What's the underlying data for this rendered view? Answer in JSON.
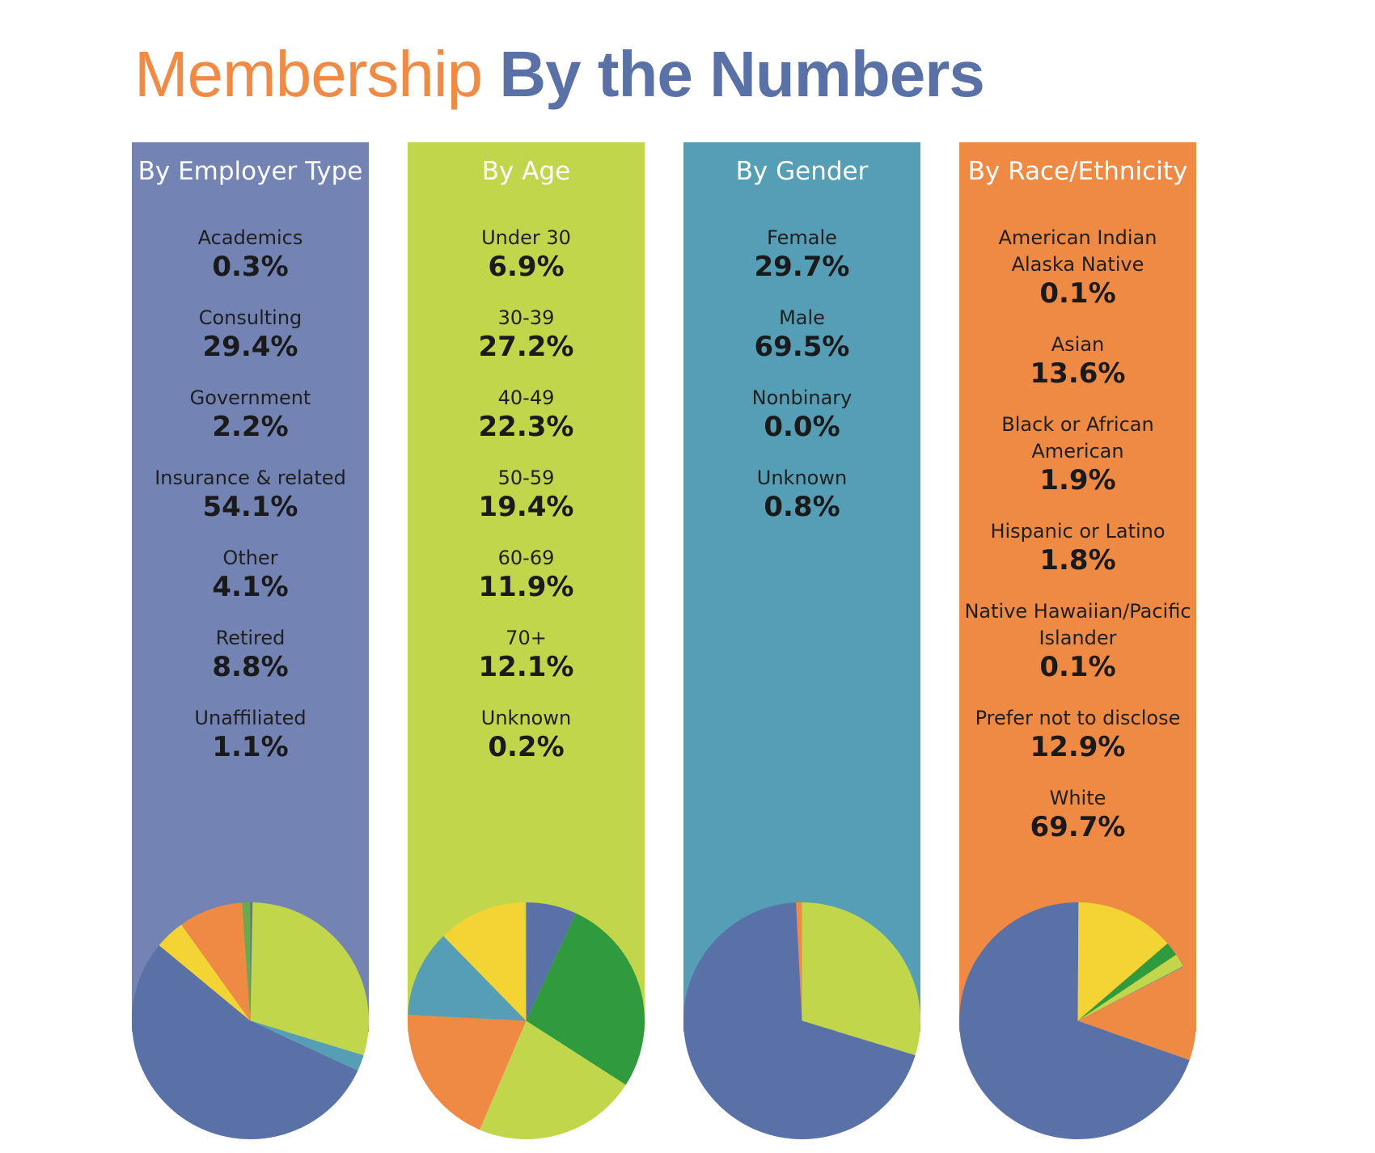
{
  "title": {
    "part1": "Membership",
    "part2": "By the Numbers"
  },
  "colors": {
    "title_orange": "#f08a44",
    "title_blue": "#5a71a8"
  },
  "columns": [
    {
      "title": "By Employer Type",
      "bg": "#7383b3",
      "entries": [
        {
          "label": "Academics",
          "value": "0.3%"
        },
        {
          "label": "Consulting",
          "value": "29.4%"
        },
        {
          "label": "Government",
          "value": "2.2%"
        },
        {
          "label": "Insurance & related",
          "value": "54.1%"
        },
        {
          "label": "Other",
          "value": "4.1%"
        },
        {
          "label": "Retired",
          "value": "8.8%"
        },
        {
          "label": "Unaffiliated",
          "value": "1.1%"
        }
      ]
    },
    {
      "title": "By Age",
      "bg": "#c2d64b",
      "entries": [
        {
          "label": "Under 30",
          "value": "6.9%"
        },
        {
          "label": "30-39",
          "value": "27.2%"
        },
        {
          "label": "40-49",
          "value": "22.3%"
        },
        {
          "label": "50-59",
          "value": "19.4%"
        },
        {
          "label": "60-69",
          "value": "11.9%"
        },
        {
          "label": "70+",
          "value": "12.1%"
        },
        {
          "label": "Unknown",
          "value": "0.2%"
        }
      ]
    },
    {
      "title": "By Gender",
      "bg": "#559eb6",
      "entries": [
        {
          "label": "Female",
          "value": "29.7%"
        },
        {
          "label": "Male",
          "value": "69.5%"
        },
        {
          "label": "Nonbinary",
          "value": "0.0%"
        },
        {
          "label": "Unknown",
          "value": "0.8%"
        }
      ]
    },
    {
      "title": "By Race/Ethnicity",
      "bg": "#ef8a45",
      "entries": [
        {
          "label": "American Indian\nAlaska Native",
          "value": "0.1%"
        },
        {
          "label": "Asian",
          "value": "13.6%"
        },
        {
          "label": "Black or African\nAmerican",
          "value": "1.9%"
        },
        {
          "label": "Hispanic or Latino",
          "value": "1.8%"
        },
        {
          "label": "Native Hawaiian/Pacific\nIslander",
          "value": "0.1%"
        },
        {
          "label": "Prefer not to disclose",
          "value": "12.9%"
        },
        {
          "label": "White",
          "value": "69.7%"
        }
      ]
    }
  ],
  "chart_data": [
    {
      "type": "pie",
      "categories": [
        "Academics",
        "Consulting",
        "Government",
        "Insurance & related",
        "Other",
        "Retired",
        "Unaffiliated"
      ],
      "values": [
        0.3,
        29.4,
        2.2,
        54.1,
        4.1,
        8.8,
        1.1
      ],
      "colors": [
        "#5a71a8",
        "#c2d64b",
        "#559eb6",
        "#5a71a8",
        "#f4d435",
        "#ef8a45",
        "#6aaa4a"
      ]
    },
    {
      "type": "pie",
      "categories": [
        "Under 30",
        "30-39",
        "40-49",
        "50-59",
        "60-69",
        "70+",
        "Unknown"
      ],
      "values": [
        6.9,
        27.2,
        22.3,
        19.4,
        11.9,
        12.1,
        0.2
      ],
      "colors": [
        "#5a71a8",
        "#2f9a3e",
        "#c2d64b",
        "#ef8a45",
        "#559eb6",
        "#f4d435",
        "#c2d64b"
      ]
    },
    {
      "type": "pie",
      "categories": [
        "Female",
        "Male",
        "Nonbinary",
        "Unknown"
      ],
      "values": [
        29.7,
        69.5,
        0.0,
        0.8
      ],
      "colors": [
        "#c2d64b",
        "#5a71a8",
        "#559eb6",
        "#ef8a45"
      ]
    },
    {
      "type": "pie",
      "categories": [
        "American Indian Alaska Native",
        "Asian",
        "Black or African American",
        "Hispanic or Latino",
        "Native Hawaiian/Pacific Islander",
        "Prefer not to disclose",
        "White"
      ],
      "values": [
        0.1,
        13.6,
        1.9,
        1.8,
        0.1,
        12.9,
        69.7
      ],
      "colors": [
        "#5a71a8",
        "#f4d435",
        "#2f9a3e",
        "#c2d64b",
        "#559eb6",
        "#ef8a45",
        "#5a71a8"
      ]
    }
  ]
}
